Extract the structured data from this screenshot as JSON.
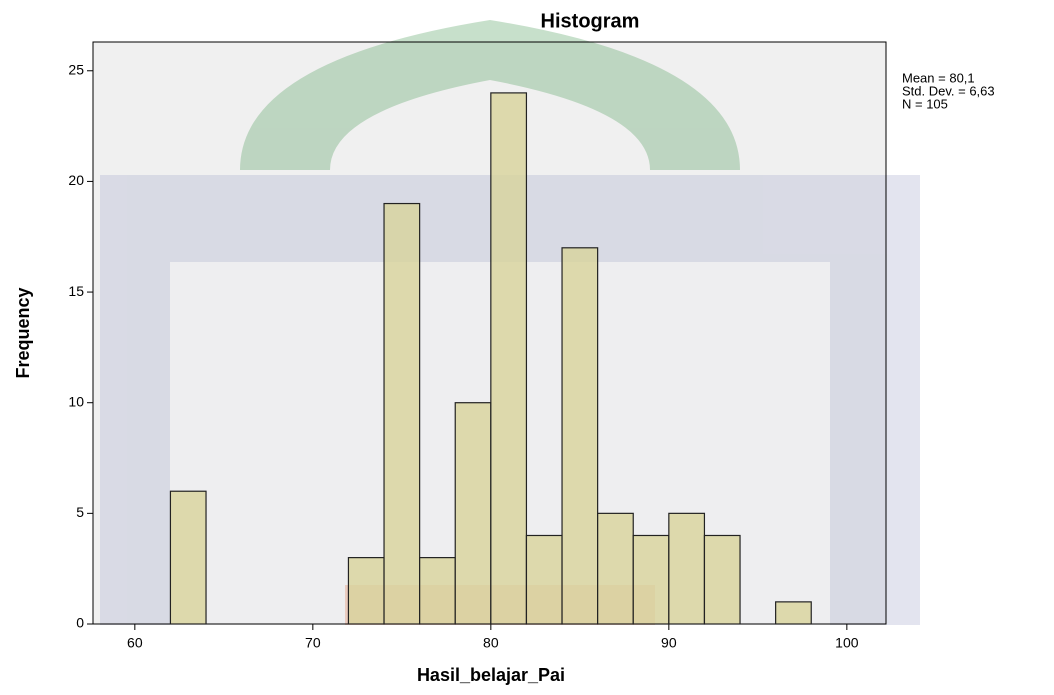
{
  "chart_data": {
    "type": "histogram",
    "title": "Histogram",
    "x_label": "Hasil_belajar_Pai",
    "y_label": "Frequency",
    "annotations": [
      "Mean = 80,1",
      "Std. Dev. = 6,63",
      "N = 105"
    ],
    "bins": [
      62,
      64,
      66,
      68,
      70,
      72,
      74,
      76,
      78,
      80,
      82,
      84,
      86,
      88,
      90,
      92,
      94,
      96,
      98
    ],
    "values": [
      6,
      0,
      0,
      0,
      0,
      3,
      19,
      3,
      10,
      24,
      4,
      17,
      5,
      4,
      5,
      4,
      0,
      1
    ],
    "color": "#d8d39b",
    "xlim": [
      57.65,
      102.2
    ],
    "xticks": [
      60,
      70,
      80,
      90,
      100
    ],
    "ylim": [
      0,
      26.3
    ],
    "yticks": [
      0,
      5,
      10,
      15,
      20,
      25
    ]
  }
}
